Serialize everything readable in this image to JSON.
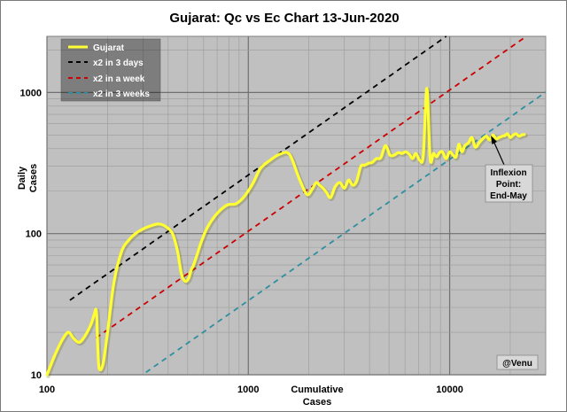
{
  "chart_data": {
    "type": "line",
    "title": "Gujarat: Qc vs Ec Chart 13-Jun-2020",
    "xlabel": [
      "Cumulative",
      "Cases"
    ],
    "ylabel": [
      "Daily",
      "Cases"
    ],
    "xscale": "log",
    "yscale": "log",
    "xlim": [
      100,
      30000
    ],
    "ylim": [
      10,
      2500
    ],
    "x_tick_labels": [
      "100",
      "1000",
      "10000"
    ],
    "y_tick_labels": [
      "10",
      "100",
      "1000"
    ],
    "grid": true,
    "legend_position": "top-left",
    "background_color": "#c0c0c0",
    "series": [
      {
        "name": "Gujarat",
        "color": "#ffff33",
        "style": "solid",
        "x": [
          100,
          110,
          120,
          128,
          136,
          145,
          155,
          166,
          172,
          176,
          179,
          182,
          190,
          200,
          215,
          235,
          255,
          275,
          300,
          330,
          360,
          390,
          420,
          445,
          465,
          485,
          505,
          520,
          535,
          555,
          580,
          615,
          660,
          720,
          790,
          870,
          960,
          1050,
          1150,
          1280,
          1430,
          1600,
          1780,
          1950,
          2070,
          2170,
          2260,
          2350,
          2450,
          2560,
          2700,
          2850,
          3000,
          3150,
          3300,
          3450,
          3620,
          3780,
          3950,
          4130,
          4330,
          4550,
          4800,
          5050,
          5300,
          5550,
          5800,
          6050,
          6300,
          6550,
          6800,
          7100,
          7400,
          7700,
          8000,
          8300,
          8600,
          8900,
          9200,
          9600,
          10000,
          10400,
          10750,
          11100,
          11500,
          11900,
          12400,
          12900,
          13400,
          14000,
          14600,
          15200,
          15800,
          16400,
          17000,
          17600,
          18200,
          18800,
          19400,
          20000,
          20700,
          21400,
          22100,
          22800,
          23500
        ],
        "y": [
          10,
          14,
          18,
          20,
          18,
          17,
          19,
          23,
          27,
          28,
          15,
          11,
          12,
          20,
          45,
          75,
          90,
          100,
          108,
          114,
          117,
          112,
          100,
          75,
          52,
          46,
          48,
          55,
          60,
          70,
          85,
          105,
          125,
          145,
          160,
          163,
          185,
          225,
          290,
          330,
          365,
          365,
          250,
          190,
          205,
          230,
          220,
          210,
          195,
          180,
          215,
          230,
          210,
          240,
          220,
          235,
          300,
          305,
          315,
          320,
          340,
          345,
          420,
          360,
          360,
          375,
          370,
          380,
          365,
          340,
          370,
          330,
          360,
          1070,
          340,
          370,
          350,
          375,
          380,
          340,
          380,
          360,
          350,
          430,
          380,
          420,
          440,
          480,
          410,
          440,
          470,
          490,
          460,
          500,
          470,
          480,
          490,
          495,
          510,
          480,
          500,
          510,
          490,
          500,
          505
        ]
      },
      {
        "name": "x2 in 3 days",
        "color": "#000000",
        "style": "dashed",
        "doubling_days": 3
      },
      {
        "name": "x2 in a week",
        "color": "#cc0000",
        "style": "dashed",
        "doubling_days": 7
      },
      {
        "name": "x2 in 3 weeks",
        "color": "#2f8fa0",
        "style": "dashed",
        "doubling_days": 21
      }
    ],
    "annotations": [
      {
        "text": [
          "Inflexion",
          "Point:",
          "End-May"
        ],
        "x": 13500,
        "y": 330
      }
    ],
    "watermark": "@Venu"
  }
}
